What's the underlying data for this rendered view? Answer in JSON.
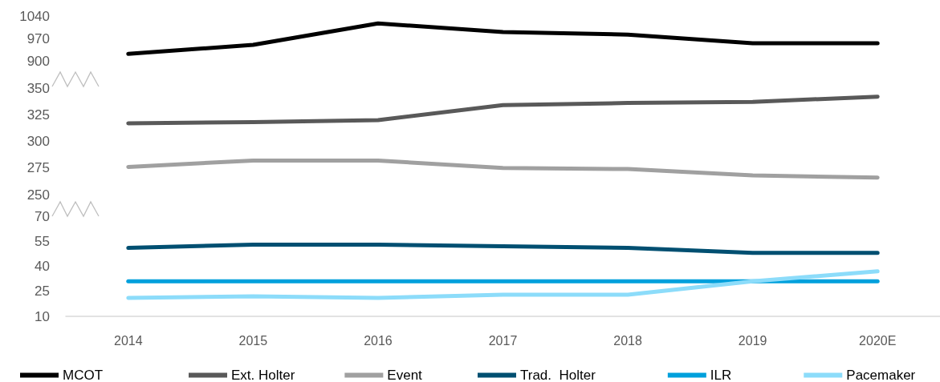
{
  "chart_data": [
    {
      "type": "line",
      "categories": [
        null,
        null,
        null,
        null,
        null,
        null,
        null
      ],
      "ylim": [
        900,
        1040
      ],
      "yticks": [
        900,
        970,
        1040
      ],
      "tick_labels": "y",
      "legend": "bottom",
      "series": [
        {
          "name": "MCOT",
          "color": "#000000",
          "values": [
            922,
            950,
            1017,
            990,
            982,
            955,
            955
          ]
        }
      ]
    },
    {
      "type": "line",
      "categories": [
        null,
        null,
        null,
        null,
        null,
        null,
        null
      ],
      "ylim": [
        250,
        350
      ],
      "yticks": [
        250,
        275,
        300,
        325,
        350
      ],
      "tick_labels": "y",
      "legend": "bottom",
      "series": [
        {
          "name": "Ext. Holter",
          "color": "#595959",
          "values": [
            317,
            318,
            320,
            334,
            336,
            337,
            342
          ]
        },
        {
          "name": "Event",
          "color": "#a0a0a0",
          "values": [
            276,
            282,
            282,
            275,
            274,
            268,
            266
          ]
        }
      ]
    },
    {
      "type": "line",
      "categories": [
        "2014",
        "2015",
        "2016",
        "2017",
        "2018",
        "2019",
        "2020E"
      ],
      "ylim": [
        10,
        70
      ],
      "yticks": [
        10,
        25,
        40,
        55,
        70
      ],
      "legend": "bottom",
      "series": [
        {
          "name": "Trad.  Holter",
          "color": "#004f71",
          "values": [
            51,
            53,
            53,
            52,
            51,
            48,
            48
          ]
        },
        {
          "name": "ILR",
          "color": "#00a0dc",
          "values": [
            31,
            31,
            31,
            31,
            31,
            31,
            31
          ]
        },
        {
          "name": "Pacemaker",
          "color": "#8cdcfa",
          "values": [
            21,
            22,
            21,
            23,
            23,
            31,
            37
          ]
        }
      ]
    }
  ]
}
